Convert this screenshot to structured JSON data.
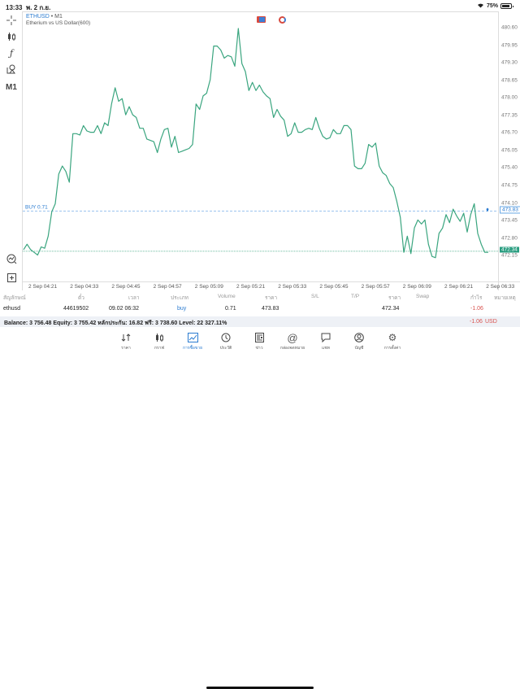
{
  "status_bar": {
    "time": "13:33",
    "date": "พ. 2 ก.ย.",
    "wifi": "wifi-icon",
    "battery": "75%"
  },
  "left_tools": [
    {
      "name": "crosshair-icon",
      "glyph": "⊹"
    },
    {
      "name": "candlestick-icon",
      "glyph": "⫿"
    },
    {
      "name": "function-icon",
      "glyph": "ƒ"
    },
    {
      "name": "objects-icon",
      "glyph": "⧉"
    },
    {
      "name": "timeframe",
      "glyph": "M1"
    },
    {
      "name": "trade-icon",
      "glyph": "⌕"
    },
    {
      "name": "new-order-icon",
      "glyph": "⊞"
    }
  ],
  "chart": {
    "symbol": "ETHUSD",
    "separator": " • ",
    "timeframe": "M1",
    "description": "Etherium vs US Dollar(600)",
    "buy_line_label": "BUY 0.71",
    "buy_price_tag": "473.83",
    "bid_price_tag": "472.34",
    "line_color": "#3aa57f",
    "buy_line_color": "#6aa8e6"
  },
  "chart_data": {
    "type": "line",
    "title": "ETHUSD • M1 — Etherium vs US Dollar(600)",
    "xlabel": "",
    "ylabel": "",
    "ylim": [
      472.15,
      480.6
    ],
    "yticks": [
      "480.60",
      "479.95",
      "479.30",
      "478.65",
      "478.00",
      "477.35",
      "476.70",
      "476.05",
      "475.40",
      "474.75",
      "474.10",
      "473.45",
      "472.80",
      "472.15"
    ],
    "xticks": [
      "2 Sep 04:21",
      "2 Sep 04:33",
      "2 Sep 04:45",
      "2 Sep 04:57",
      "2 Sep 05:09",
      "2 Sep 05:21",
      "2 Sep 05:33",
      "2 Sep 05:45",
      "2 Sep 05:57",
      "2 Sep 06:09",
      "2 Sep 06:21",
      "2 Sep 06:33"
    ],
    "series": [
      {
        "name": "ETHUSD Bid",
        "values": [
          472.4,
          472.6,
          472.4,
          472.3,
          472.2,
          472.5,
          472.45,
          472.9,
          473.8,
          474.1,
          475.2,
          475.5,
          475.3,
          474.9,
          476.7,
          476.7,
          476.65,
          477.0,
          476.8,
          476.75,
          476.75,
          477.0,
          476.7,
          477.1,
          477.0,
          477.8,
          478.4,
          477.9,
          478.0,
          477.4,
          477.7,
          477.4,
          477.3,
          476.9,
          476.9,
          476.5,
          476.45,
          476.4,
          476.0,
          476.5,
          476.85,
          476.9,
          476.2,
          476.6,
          476.0,
          476.05,
          476.1,
          476.15,
          476.3,
          477.8,
          477.6,
          478.1,
          478.2,
          478.7,
          479.95,
          479.95,
          479.8,
          479.5,
          479.6,
          479.55,
          479.2,
          480.6,
          479.3,
          479.0,
          478.3,
          478.6,
          478.3,
          478.5,
          478.25,
          478.1,
          478.0,
          477.3,
          477.6,
          477.35,
          477.2,
          476.6,
          476.7,
          477.1,
          476.75,
          476.75,
          476.85,
          476.9,
          476.85,
          477.3,
          476.9,
          476.6,
          476.5,
          476.55,
          476.85,
          476.7,
          476.7,
          477.0,
          477.0,
          476.85,
          475.5,
          475.4,
          475.4,
          475.6,
          476.3,
          476.2,
          476.35,
          475.5,
          475.25,
          475.15,
          474.85,
          474.7,
          474.2,
          473.6,
          472.3,
          472.9,
          472.25,
          473.2,
          473.5,
          473.35,
          473.5,
          472.6,
          472.15,
          472.1,
          473.0,
          473.2,
          473.7,
          473.4,
          473.9,
          473.65,
          473.45,
          473.75,
          473.05,
          473.7,
          474.1,
          473.0,
          472.6,
          472.3,
          472.3
        ]
      }
    ],
    "horizontal_lines": [
      {
        "label": "BUY 0.71",
        "value": 473.83
      },
      {
        "label": "Bid",
        "value": 472.34
      }
    ],
    "grid": false
  },
  "table": {
    "headers": [
      "สัญลักษณ์",
      "ตั๋ว",
      "เวลา",
      "ประเภท",
      "Volume",
      "ราคา",
      "S/L",
      "T/P",
      "ราคา",
      "Swap",
      "กำไร",
      "หมายเหตุ"
    ],
    "rows": [
      {
        "symbol": "ethusd",
        "ticket": "44619502",
        "time": "09.02 06:32",
        "type": "buy",
        "volume": "0.71",
        "open_price": "473.83",
        "sl": "",
        "tp": "",
        "price": "472.34",
        "swap": "",
        "profit": "-1.06",
        "comment": ""
      }
    ]
  },
  "balance_bar": {
    "text": "Balance: 3 756.48 Equity: 3 755.42 หลักประกัน: 16.82 ฟรี: 3 738.60 Level: 22 327.11%",
    "profit": "-1.06",
    "currency": "USD"
  },
  "tabs": [
    {
      "label": "ราคา",
      "icon": "quotes-icon",
      "glyph": "⇅"
    },
    {
      "label": "กราฟ",
      "icon": "chart-icon",
      "glyph": "⫿"
    },
    {
      "label": "การซื้อขาย",
      "icon": "trade-icon",
      "glyph": "📈",
      "active": true
    },
    {
      "label": "ประวัติ",
      "icon": "history-icon",
      "glyph": "◷"
    },
    {
      "label": "ข่าว",
      "icon": "news-icon",
      "glyph": "▤"
    },
    {
      "label": "กล่องจดหมาย",
      "icon": "mailbox-icon",
      "glyph": "@"
    },
    {
      "label": "แชท",
      "icon": "chat-icon",
      "glyph": "◻"
    },
    {
      "label": "บัญชี",
      "icon": "account-icon",
      "glyph": "◉"
    },
    {
      "label": "การตั้งค่า",
      "icon": "settings-icon",
      "glyph": "⚙"
    }
  ]
}
